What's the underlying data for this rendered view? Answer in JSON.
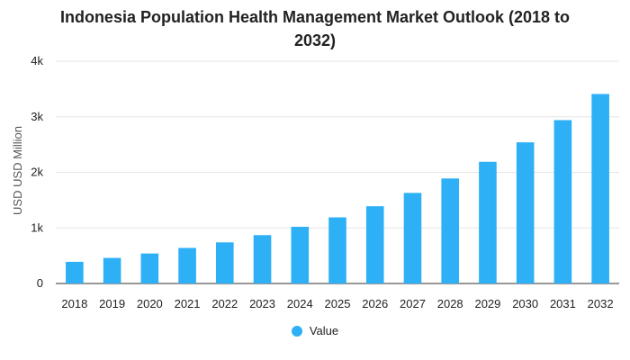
{
  "chart_data": {
    "type": "bar",
    "title_lines": [
      "Indonesia Population Health Management Market Outlook (2018 to",
      "2032)"
    ],
    "title": "Indonesia Population Health Management Market Outlook (2018 to 2032)",
    "xlabel": "",
    "ylabel": "USD USD Million",
    "ylim": [
      0,
      4000
    ],
    "yticks": [
      0,
      1000,
      2000,
      3000,
      4000
    ],
    "ytick_labels": [
      "0",
      "1k",
      "2k",
      "3k",
      "4k"
    ],
    "categories": [
      "2018",
      "2019",
      "2020",
      "2021",
      "2022",
      "2023",
      "2024",
      "2025",
      "2026",
      "2027",
      "2028",
      "2029",
      "2030",
      "2031",
      "2032"
    ],
    "series": [
      {
        "name": "Value",
        "color": "#2eb0f6",
        "values": [
          390,
          460,
          540,
          640,
          740,
          870,
          1020,
          1190,
          1390,
          1630,
          1890,
          2190,
          2540,
          2940,
          3410
        ]
      }
    ],
    "grid": true,
    "legend": "bottom-center"
  }
}
